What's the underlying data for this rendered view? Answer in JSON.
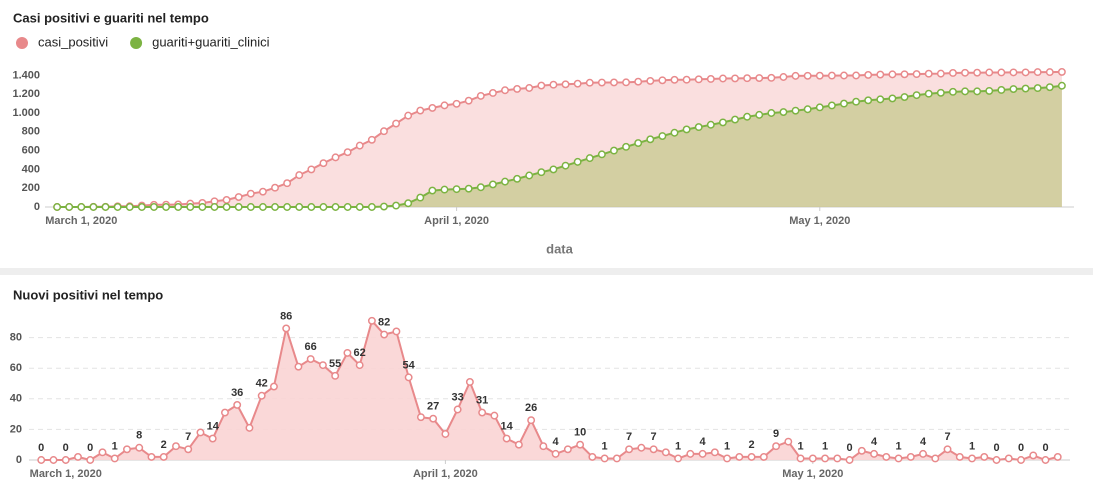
{
  "chart_data": [
    {
      "type": "area",
      "title": "Casi positivi e guariti nel tempo",
      "xlabel": "data",
      "legend": "top-left",
      "grid": false,
      "x": [
        "2020-02-28",
        "2020-02-29",
        "2020-03-01",
        "2020-03-02",
        "2020-03-03",
        "2020-03-04",
        "2020-03-05",
        "2020-03-06",
        "2020-03-07",
        "2020-03-08",
        "2020-03-09",
        "2020-03-10",
        "2020-03-11",
        "2020-03-12",
        "2020-03-13",
        "2020-03-14",
        "2020-03-15",
        "2020-03-16",
        "2020-03-17",
        "2020-03-18",
        "2020-03-19",
        "2020-03-20",
        "2020-03-21",
        "2020-03-22",
        "2020-03-23",
        "2020-03-24",
        "2020-03-25",
        "2020-03-26",
        "2020-03-27",
        "2020-03-28",
        "2020-03-29",
        "2020-03-30",
        "2020-03-31",
        "2020-04-01",
        "2020-04-02",
        "2020-04-03",
        "2020-04-04",
        "2020-04-05",
        "2020-04-06",
        "2020-04-07",
        "2020-04-08",
        "2020-04-09",
        "2020-04-10",
        "2020-04-11",
        "2020-04-12",
        "2020-04-13",
        "2020-04-14",
        "2020-04-15",
        "2020-04-16",
        "2020-04-17",
        "2020-04-18",
        "2020-04-19",
        "2020-04-20",
        "2020-04-21",
        "2020-04-22",
        "2020-04-23",
        "2020-04-24",
        "2020-04-25",
        "2020-04-26",
        "2020-04-27",
        "2020-04-28",
        "2020-04-29",
        "2020-04-30",
        "2020-05-01",
        "2020-05-02",
        "2020-05-03",
        "2020-05-04",
        "2020-05-05",
        "2020-05-06",
        "2020-05-07",
        "2020-05-08",
        "2020-05-09",
        "2020-05-10",
        "2020-05-11",
        "2020-05-12",
        "2020-05-13",
        "2020-05-14",
        "2020-05-15",
        "2020-05-16",
        "2020-05-17",
        "2020-05-18",
        "2020-05-19",
        "2020-05-20",
        "2020-05-21"
      ],
      "series": [
        {
          "name": "casi_positivi",
          "color": "#e8898b",
          "fill": "#f7c9c9",
          "values": [
            0,
            0,
            0,
            2,
            2,
            7,
            8,
            15,
            23,
            25,
            27,
            36,
            43,
            61,
            75,
            106,
            142,
            163,
            205,
            253,
            339,
            400,
            466,
            528,
            583,
            653,
            715,
            806,
            888,
            972,
            1026,
            1054,
            1081,
            1098,
            1131,
            1182,
            1213,
            1242,
            1256,
            1266,
            1292,
            1301,
            1305,
            1312,
            1322,
            1324,
            1325,
            1326,
            1333,
            1341,
            1348,
            1353,
            1354,
            1358,
            1362,
            1367,
            1368,
            1370,
            1372,
            1374,
            1383,
            1395,
            1396,
            1397,
            1398,
            1399,
            1399,
            1405,
            1409,
            1411,
            1412,
            1414,
            1418,
            1419,
            1426,
            1428,
            1429,
            1431,
            1431,
            1432,
            1432,
            1435,
            1435,
            1437
          ]
        },
        {
          "name": "guariti+guariti_clinici",
          "color": "#7cb342",
          "fill": "#b9c47a",
          "values": [
            0,
            0,
            0,
            0,
            0,
            0,
            0,
            0,
            0,
            0,
            0,
            0,
            0,
            0,
            0,
            0,
            0,
            0,
            0,
            0,
            0,
            0,
            0,
            0,
            0,
            0,
            0,
            5,
            15,
            40,
            100,
            175,
            185,
            190,
            195,
            210,
            240,
            270,
            300,
            335,
            370,
            400,
            440,
            480,
            520,
            560,
            600,
            640,
            680,
            720,
            755,
            790,
            825,
            850,
            875,
            900,
            930,
            960,
            980,
            1000,
            1010,
            1025,
            1040,
            1060,
            1080,
            1100,
            1120,
            1135,
            1145,
            1155,
            1170,
            1190,
            1205,
            1215,
            1225,
            1230,
            1230,
            1235,
            1245,
            1255,
            1260,
            1265,
            1275,
            1290
          ]
        }
      ],
      "xlim": [
        "2020-02-27",
        "2020-05-22"
      ],
      "xticks": [
        {
          "value": "2020-03-01",
          "label": "March 1, 2020"
        },
        {
          "value": "2020-04-01",
          "label": "April 1, 2020"
        },
        {
          "value": "2020-05-01",
          "label": "May 1, 2020"
        }
      ],
      "ylim": [
        0,
        1500
      ],
      "yticks": [
        0,
        200,
        400,
        600,
        800,
        {
          "value": 1000,
          "label": "1.000"
        },
        {
          "value": 1200,
          "label": "1.200"
        },
        {
          "value": 1400,
          "label": "1.400"
        }
      ]
    },
    {
      "type": "area",
      "title": "Nuovi positivi nel tempo",
      "grid": true,
      "label_every": 2,
      "x": [
        "2020-02-28",
        "2020-02-29",
        "2020-03-01",
        "2020-03-02",
        "2020-03-03",
        "2020-03-04",
        "2020-03-05",
        "2020-03-06",
        "2020-03-07",
        "2020-03-08",
        "2020-03-09",
        "2020-03-10",
        "2020-03-11",
        "2020-03-12",
        "2020-03-13",
        "2020-03-14",
        "2020-03-15",
        "2020-03-16",
        "2020-03-17",
        "2020-03-18",
        "2020-03-19",
        "2020-03-20",
        "2020-03-21",
        "2020-03-22",
        "2020-03-23",
        "2020-03-24",
        "2020-03-25",
        "2020-03-26",
        "2020-03-27",
        "2020-03-28",
        "2020-03-29",
        "2020-03-30",
        "2020-03-31",
        "2020-04-01",
        "2020-04-02",
        "2020-04-03",
        "2020-04-04",
        "2020-04-05",
        "2020-04-06",
        "2020-04-07",
        "2020-04-08",
        "2020-04-09",
        "2020-04-10",
        "2020-04-11",
        "2020-04-12",
        "2020-04-13",
        "2020-04-14",
        "2020-04-15",
        "2020-04-16",
        "2020-04-17",
        "2020-04-18",
        "2020-04-19",
        "2020-04-20",
        "2020-04-21",
        "2020-04-22",
        "2020-04-23",
        "2020-04-24",
        "2020-04-25",
        "2020-04-26",
        "2020-04-27",
        "2020-04-28",
        "2020-04-29",
        "2020-04-30",
        "2020-05-01",
        "2020-05-02",
        "2020-05-03",
        "2020-05-04",
        "2020-05-05",
        "2020-05-06",
        "2020-05-07",
        "2020-05-08",
        "2020-05-09",
        "2020-05-10",
        "2020-05-11",
        "2020-05-12",
        "2020-05-13",
        "2020-05-14",
        "2020-05-15",
        "2020-05-16",
        "2020-05-17",
        "2020-05-18",
        "2020-05-19",
        "2020-05-20",
        "2020-05-21"
      ],
      "series": [
        {
          "name": "nuovi_positivi",
          "color": "#e8898b",
          "fill": "#fad4d4",
          "values": [
            0,
            0,
            0,
            2,
            0,
            5,
            1,
            7,
            8,
            2,
            2,
            9,
            7,
            18,
            14,
            31,
            36,
            21,
            42,
            48,
            86,
            61,
            66,
            62,
            55,
            70,
            62,
            91,
            82,
            84,
            54,
            28,
            27,
            17,
            33,
            51,
            31,
            29,
            14,
            10,
            26,
            9,
            4,
            7,
            10,
            2,
            1,
            1,
            7,
            8,
            7,
            5,
            1,
            4,
            4,
            5,
            1,
            2,
            2,
            2,
            9,
            12,
            1,
            1,
            1,
            1,
            0,
            6,
            4,
            2,
            1,
            2,
            4,
            1,
            7,
            2,
            1,
            2,
            0,
            1,
            0,
            3,
            0,
            2
          ]
        }
      ],
      "xlim": [
        "2020-02-27",
        "2020-05-22"
      ],
      "xticks": [
        {
          "value": "2020-03-01",
          "label": "March 1, 2020"
        },
        {
          "value": "2020-04-01",
          "label": "April 1, 2020"
        },
        {
          "value": "2020-05-01",
          "label": "May 1, 2020"
        }
      ],
      "ylim": [
        0,
        100
      ],
      "yticks": [
        0,
        20,
        40,
        60,
        80
      ]
    }
  ]
}
